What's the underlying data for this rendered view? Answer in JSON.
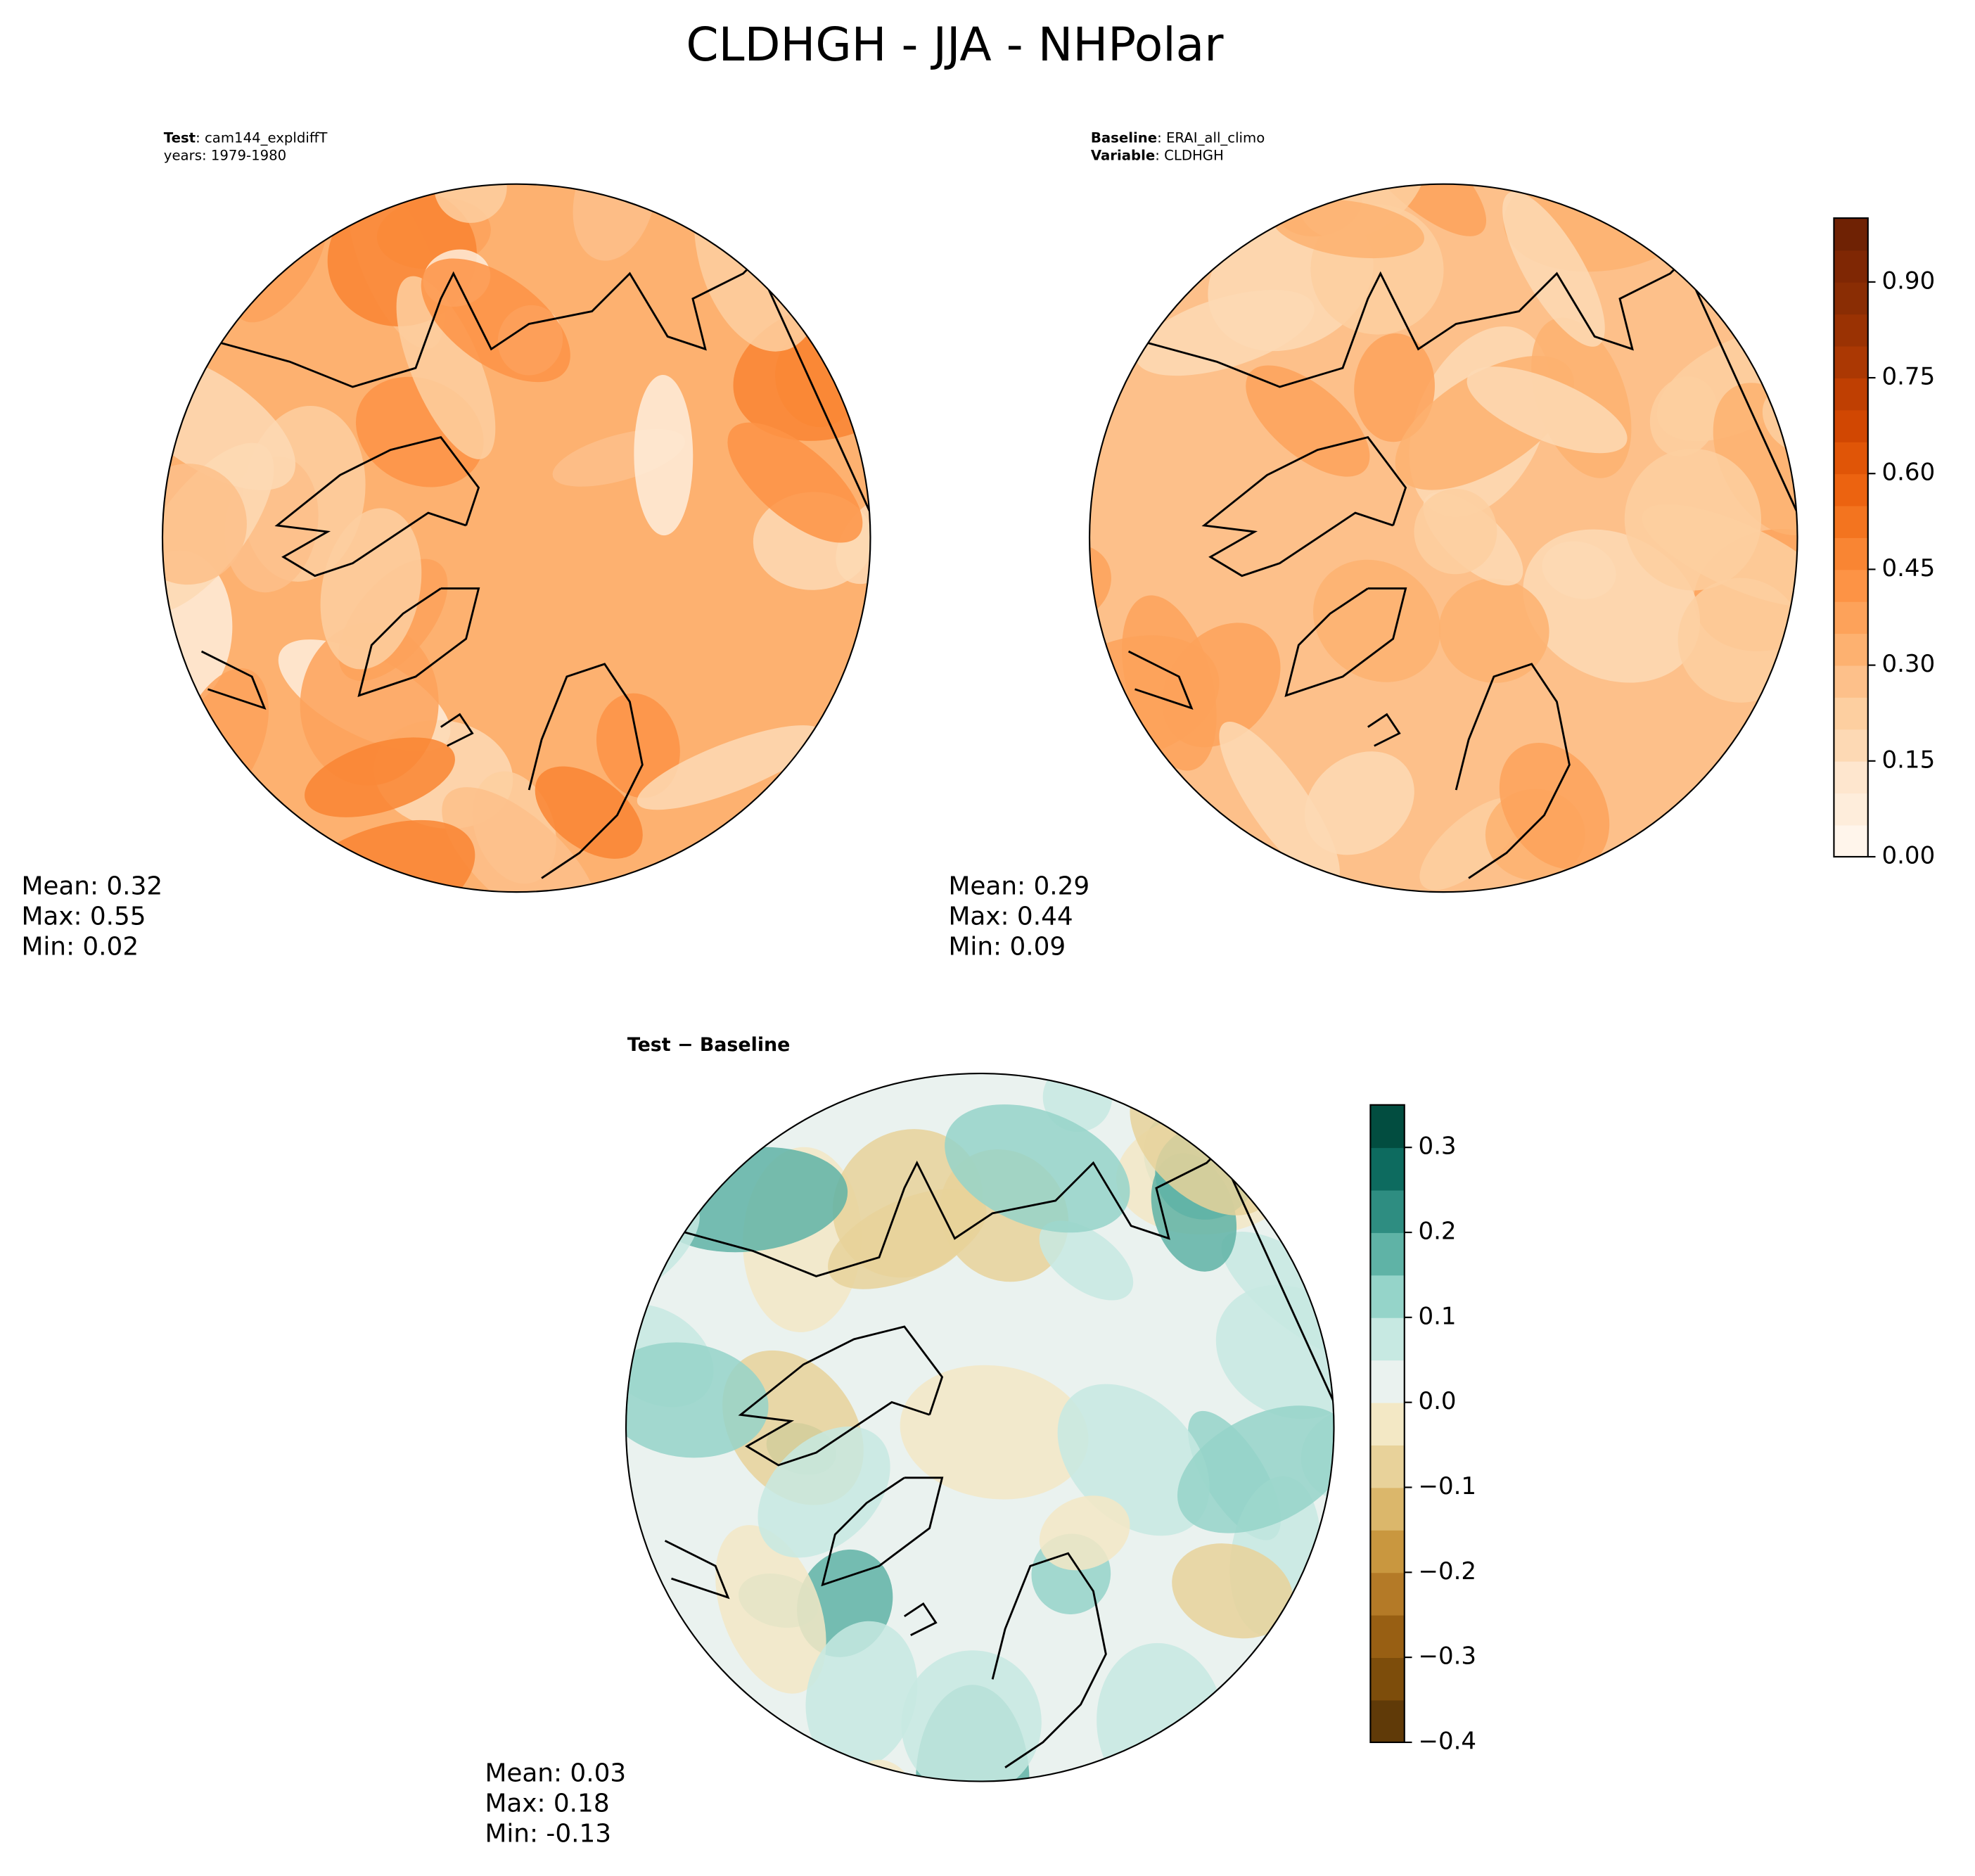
{
  "title": "CLDHGH - JJA - NHPolar",
  "panels": [
    {
      "header": [
        {
          "key": "Test",
          "value": ": cam144_expldiffT"
        },
        {
          "value": "years: 1979-1980"
        }
      ],
      "stats": [
        "Mean:  0.32",
        "Max:  0.55",
        "Min:  0.02"
      ]
    },
    {
      "header": [
        {
          "key": "Baseline",
          "value": ": ERAI_all_climo"
        },
        {
          "key": "Variable",
          "value": ": CLDHGH"
        }
      ],
      "stats": [
        "Mean:  0.29",
        "Max:  0.44",
        "Min:  0.09"
      ]
    },
    {
      "header": [
        {
          "key": "Test − Baseline"
        }
      ],
      "stats": [
        "Mean:  0.03",
        "Max:  0.18",
        "Min: -0.13"
      ]
    }
  ],
  "colorbars": [
    {
      "ylim": [
        0,
        1
      ],
      "yticks": [
        {
          "value": 0,
          "label": "0.00"
        },
        0.15,
        {
          "value": 0.3,
          "label": "0.30"
        },
        0.45,
        {
          "value": 0.6,
          "label": "0.60"
        },
        0.75,
        {
          "value": 0.9,
          "label": "0.90"
        }
      ],
      "colors": [
        "#fff5eb",
        "#feeddb",
        "#fee6ce",
        "#fdd9b4",
        "#fdcfa0",
        "#fdc08a",
        "#fdb170",
        "#fda25a",
        "#fd9345",
        "#f98533",
        "#f3741f",
        "#ec6310",
        "#e05507",
        "#d14702",
        "#bf3f02",
        "#ab3803",
        "#9a3203",
        "#8a2d04",
        "#7f2704",
        "#6f2204"
      ]
    },
    {
      "ylim": [
        -0.4,
        0.35
      ],
      "yticks": [
        {
          "value": -0.4,
          "label": "−0.4"
        },
        {
          "value": -0.3,
          "label": "−0.3"
        },
        {
          "value": -0.2,
          "label": "−0.2"
        },
        {
          "value": -0.1,
          "label": "−0.1"
        },
        {
          "value": 0,
          "label": "0.0"
        },
        0.1,
        0.2,
        0.3
      ],
      "colors": [
        "#603a08",
        "#7d4d0b",
        "#985f13",
        "#b47a27",
        "#c9973f",
        "#dbb76b",
        "#e8d29a",
        "#f3e8c5",
        "#eaf2ef",
        "#c7e9e2",
        "#95d4c9",
        "#5fb3a6",
        "#2e8d81",
        "#0d6b5f",
        "#024d40"
      ]
    }
  ]
}
